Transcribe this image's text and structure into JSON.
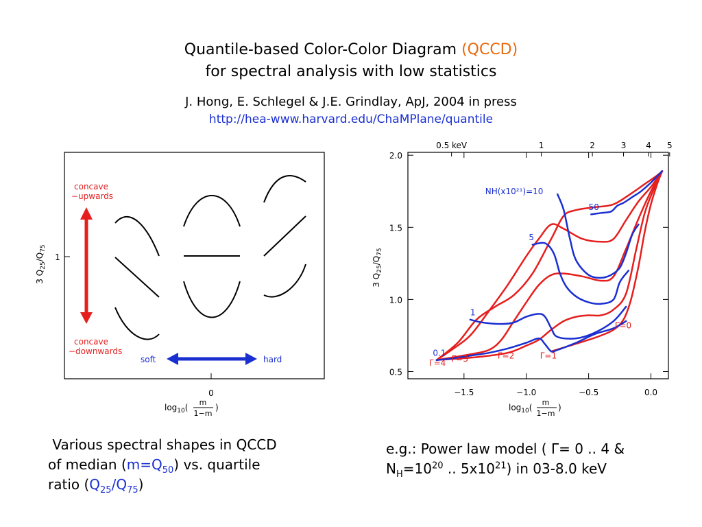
{
  "header": {
    "title_main": "Quantile-based Color-Color Diagram",
    "title_acronym": "(QCCD)",
    "title_line2": "for spectral analysis with low statistics",
    "citation": "J. Hong, E. Schlegel & J.E. Grindlay, ApJ, 2004 in press",
    "url": "http://hea-www.harvard.edu/ChaMPlane/quantile"
  },
  "left_figure": {
    "ylabel_prefix": "3 Q",
    "ylabel_sub1": "25",
    "ylabel_slash": "/Q",
    "ylabel_sub2": "75",
    "ytick": "1",
    "xtick": "0",
    "xlabel_prefix": "log",
    "xlabel_sub": "10",
    "xlabel_num": "m",
    "xlabel_den": "1−m",
    "label_up_1": "concave",
    "label_up_2": "−upwards",
    "label_down_1": "concave",
    "label_down_2": "−downwards",
    "label_soft": "soft",
    "label_hard": "hard",
    "colors": {
      "red": "#e61e1e",
      "blue": "#1a2fd0"
    }
  },
  "chart_data": {
    "type": "line",
    "xlabel": "log10(m/(1−m))",
    "ylabel": "3 Q25/Q75",
    "xlim": [
      -1.95,
      0.14
    ],
    "ylim": [
      0.45,
      2.02
    ],
    "xticks": [
      -1.5,
      -1.0,
      -0.5,
      0.0
    ],
    "xtick_labels": [
      "−1.5",
      "−1.0",
      "−0.5",
      "0.0"
    ],
    "yticks": [
      0.5,
      1.0,
      1.5,
      2.0
    ],
    "ytick_labels": [
      "0.5",
      "1.0",
      "1.5",
      "2.0"
    ],
    "top_axis_labels": [
      "0.5 keV",
      "1",
      "2",
      "3",
      "4",
      "5"
    ],
    "top_axis_x": [
      -1.6,
      -0.88,
      -0.47,
      -0.22,
      -0.02,
      0.15
    ],
    "grid": false,
    "series": [
      {
        "name": "Γ=4",
        "color": "#e61e1e",
        "x": [
          -1.72,
          -1.55,
          -1.4,
          -1.25,
          -1.1,
          -0.95,
          -0.8,
          -0.7,
          -0.6,
          -0.45,
          -0.3,
          -0.15,
          -0.05,
          0.05,
          0.09
        ],
        "y": [
          0.58,
          0.7,
          0.86,
          0.95,
          1.03,
          1.18,
          1.42,
          1.58,
          1.62,
          1.64,
          1.66,
          1.74,
          1.8,
          1.86,
          1.89
        ]
      },
      {
        "name": "Γ=3",
        "color": "#e61e1e",
        "x": [
          -1.72,
          -1.6,
          -1.45,
          -1.3,
          -1.15,
          -1.0,
          -0.9,
          -0.8,
          -0.7,
          -0.55,
          -0.4,
          -0.3,
          -0.2,
          -0.1,
          0.0,
          0.09
        ],
        "y": [
          0.58,
          0.65,
          0.75,
          0.92,
          1.1,
          1.3,
          1.42,
          1.52,
          1.49,
          1.42,
          1.4,
          1.42,
          1.55,
          1.68,
          1.78,
          1.89
        ]
      },
      {
        "name": "Γ=2",
        "color": "#e61e1e",
        "x": [
          -1.72,
          -1.45,
          -1.3,
          -1.2,
          -1.1,
          -1.0,
          -0.9,
          -0.8,
          -0.7,
          -0.55,
          -0.4,
          -0.3,
          -0.2,
          -0.1,
          0.0,
          0.09
        ],
        "y": [
          0.58,
          0.62,
          0.65,
          0.72,
          0.85,
          0.98,
          1.1,
          1.17,
          1.18,
          1.16,
          1.13,
          1.16,
          1.35,
          1.56,
          1.75,
          1.89
        ]
      },
      {
        "name": "Γ=1",
        "color": "#e61e1e",
        "x": [
          -1.72,
          -1.4,
          -1.15,
          -1.0,
          -0.9,
          -0.8,
          -0.7,
          -0.6,
          -0.5,
          -0.4,
          -0.3,
          -0.2,
          -0.12,
          -0.05,
          0.02,
          0.09
        ],
        "y": [
          0.58,
          0.6,
          0.63,
          0.68,
          0.72,
          0.79,
          0.85,
          0.88,
          0.89,
          0.89,
          0.93,
          1.04,
          1.34,
          1.6,
          1.76,
          1.89
        ]
      },
      {
        "name": "Γ=0",
        "color": "#e61e1e",
        "x": [
          -0.8,
          -0.65,
          -0.5,
          -0.4,
          -0.3,
          -0.22,
          -0.16,
          -0.1,
          -0.05,
          0.0,
          0.05,
          0.09
        ],
        "y": [
          0.64,
          0.68,
          0.72,
          0.75,
          0.79,
          0.86,
          1.0,
          1.23,
          1.47,
          1.66,
          1.8,
          1.89
        ]
      },
      {
        "name": "NH=10^20 (0.1)",
        "color": "#1a2fd0",
        "x": [
          -1.72,
          -1.6,
          -1.45,
          -1.3,
          -1.15,
          -1.0,
          -0.9,
          -0.85,
          -0.8,
          -0.75,
          -0.6,
          -0.45,
          -0.3,
          -0.2
        ],
        "y": [
          0.58,
          0.59,
          0.61,
          0.63,
          0.66,
          0.7,
          0.73,
          0.69,
          0.64,
          0.65,
          0.7,
          0.76,
          0.8,
          0.85
        ]
      },
      {
        "name": "NH=10^21 (1)",
        "color": "#1a2fd0",
        "x": [
          -1.45,
          -1.35,
          -1.2,
          -1.1,
          -1.0,
          -0.9,
          -0.85,
          -0.8,
          -0.75,
          -0.6,
          -0.45,
          -0.3,
          -0.2
        ],
        "y": [
          0.86,
          0.84,
          0.83,
          0.84,
          0.88,
          0.9,
          0.88,
          0.8,
          0.74,
          0.73,
          0.77,
          0.85,
          0.95
        ]
      },
      {
        "name": "NH=5x10^21 (5)",
        "color": "#1a2fd0",
        "x": [
          -0.95,
          -0.85,
          -0.78,
          -0.73,
          -0.68,
          -0.6,
          -0.5,
          -0.4,
          -0.3,
          -0.25,
          -0.18
        ],
        "y": [
          1.38,
          1.39,
          1.32,
          1.18,
          1.09,
          1.02,
          0.98,
          0.97,
          1.0,
          1.12,
          1.2
        ]
      },
      {
        "name": "NH=10^22 (10)",
        "color": "#1a2fd0",
        "x": [
          -0.75,
          -0.7,
          -0.65,
          -0.6,
          -0.5,
          -0.4,
          -0.32,
          -0.25,
          -0.2,
          -0.15,
          -0.1
        ],
        "y": [
          1.73,
          1.62,
          1.42,
          1.27,
          1.17,
          1.15,
          1.17,
          1.22,
          1.32,
          1.45,
          1.52
        ]
      },
      {
        "name": "NH=5x10^22 (50)",
        "color": "#1a2fd0",
        "x": [
          -0.48,
          -0.4,
          -0.32,
          -0.27,
          -0.22,
          -0.15,
          -0.08,
          0.0,
          0.09
        ],
        "y": [
          1.59,
          1.6,
          1.61,
          1.65,
          1.67,
          1.71,
          1.75,
          1.81,
          1.89
        ]
      }
    ],
    "annotations": [
      {
        "text": "0.1",
        "x": -1.75,
        "y": 0.61,
        "color": "#1a2fd0"
      },
      {
        "text": "1",
        "x": -1.45,
        "y": 0.89,
        "color": "#1a2fd0"
      },
      {
        "text": "5",
        "x": -0.98,
        "y": 1.41,
        "color": "#1a2fd0"
      },
      {
        "text": "50",
        "x": -0.5,
        "y": 1.62,
        "color": "#1a2fd0"
      },
      {
        "text": "NH(x10²¹)=10",
        "x": -1.33,
        "y": 1.73,
        "color": "#1a2fd0"
      },
      {
        "text": "Γ=4",
        "x": -1.78,
        "y": 0.54,
        "color": "#e61e1e"
      },
      {
        "text": "Γ=3",
        "x": -1.6,
        "y": 0.57,
        "color": "#e61e1e"
      },
      {
        "text": "Γ=2",
        "x": -1.23,
        "y": 0.59,
        "color": "#e61e1e"
      },
      {
        "text": "Γ=1",
        "x": -0.89,
        "y": 0.59,
        "color": "#e61e1e"
      },
      {
        "text": "Γ=0",
        "x": -0.29,
        "y": 0.8,
        "color": "#e61e1e"
      }
    ]
  },
  "captions": {
    "left_l1": " Various spectral shapes in QCCD",
    "left_l2a": "of median (",
    "left_m": "m=Q",
    "left_sub50": "50",
    "left_l2b": ") vs. quartile",
    "left_l3a": "ratio (",
    "left_q": "Q",
    "left_sub25": "25",
    "left_slashq": "/Q",
    "left_sub75": "75",
    "left_l3b": ")",
    "right_l1": "e.g.: Power law model ( Γ= 0 .. 4 &",
    "right_nh": "N",
    "right_subH": "H",
    "right_eq": "=10",
    "right_sup20": "20",
    "right_mid": " .. 5x10",
    "right_sup21": "21",
    "right_end": ") in 03-8.0 keV"
  }
}
